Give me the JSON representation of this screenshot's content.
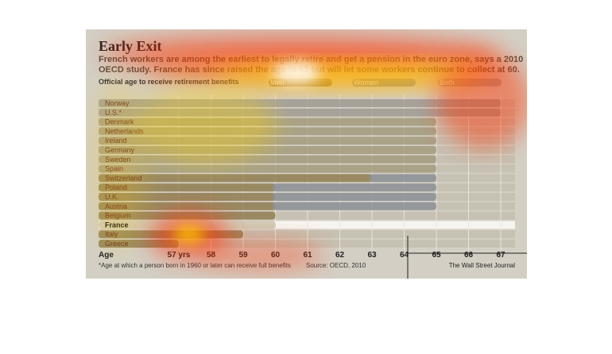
{
  "chart_data": {
    "type": "bar",
    "title": "Early Exit",
    "subtitle": "French workers are among the earliest to legally retire and get a pension in the euro zone, says a 2010 OECD study. France has since raised the age to 62 but will let some workers continue to collect at 60.",
    "section_label": "Official age to receive retirement benefits",
    "legend": [
      {
        "name": "Men",
        "color": "#8d7a4e"
      },
      {
        "name": "Women",
        "color": "#8b9096"
      },
      {
        "name": "Both",
        "color": "#a19f9d"
      }
    ],
    "categories": [
      "Norway",
      "U.S.*",
      "Denmark",
      "Netherlands",
      "Ireland",
      "Germany",
      "Sweden",
      "Spain",
      "Switzerland",
      "Poland",
      "U.K.",
      "Austria",
      "Belgium",
      "France",
      "Italy",
      "Greece"
    ],
    "highlight_category": "France",
    "series": [
      {
        "name": "Men",
        "values": [
          67,
          67,
          65,
          65,
          65,
          65,
          65,
          65,
          65,
          65,
          65,
          65,
          60,
          60,
          59,
          57
        ]
      },
      {
        "name": "Women",
        "values": [
          67,
          67,
          65,
          65,
          65,
          65,
          65,
          65,
          63,
          60,
          60,
          60,
          60,
          60,
          59,
          57
        ]
      }
    ],
    "xlabel": "Age",
    "x_ticks": [
      "57 yrs",
      "58",
      "59",
      "60",
      "61",
      "62",
      "63",
      "64",
      "65",
      "66",
      "67"
    ],
    "xlim": [
      57,
      67
    ],
    "grid": true,
    "legend_position": "top",
    "footnote": "*Age at which a person born in 1960 or later can receive full benefits",
    "source": "Source: OECD, 2010",
    "credit": "The Wall Street Journal"
  }
}
